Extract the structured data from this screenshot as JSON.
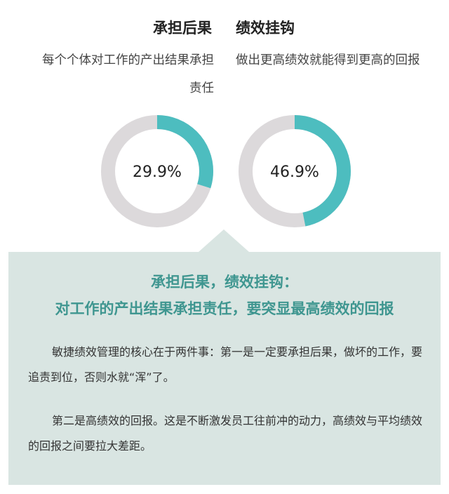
{
  "columns": [
    {
      "title": "承担后果",
      "description": "每个个体对工作的产出结果承担责任",
      "percent_label": "29.9%",
      "value": 29.9
    },
    {
      "title": "绩效挂钩",
      "description": "做出更高绩效就能得到更高的回报",
      "percent_label": "46.9%",
      "value": 46.9
    }
  ],
  "colors": {
    "accent": "#4dbdbf",
    "track": "#dcd9db",
    "panel": "#d9e5e2",
    "heading": "#3f9690"
  },
  "panel": {
    "heading_line1": "承担后果，绩效挂钩：",
    "heading_line2": "对工作的产出结果承担责任，要突显最高绩效的回报",
    "paragraph1": "敏捷绩效管理的核心在于两件事：第一是一定要承担后果，做坏的工作，要追责到位，否则水就“浑”了。",
    "paragraph2": "第二是高绩效的回报。这是不断激发员工往前冲的动力，高绩效与平均绩效的回报之间要拉大差距。"
  },
  "chart_data": [
    {
      "type": "pie",
      "title": "承担后果",
      "values": [
        29.9,
        70.1
      ],
      "labels": [
        "29.9%",
        ""
      ]
    },
    {
      "type": "pie",
      "title": "绩效挂钩",
      "values": [
        46.9,
        53.1
      ],
      "labels": [
        "46.9%",
        ""
      ]
    }
  ]
}
